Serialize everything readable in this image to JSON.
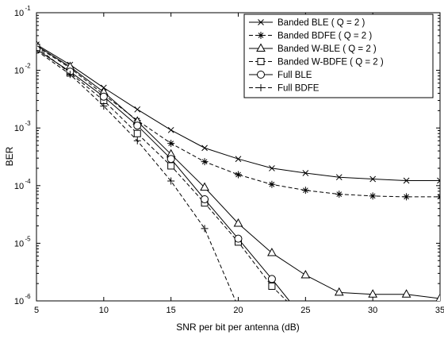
{
  "chart_data": {
    "type": "line",
    "title": "",
    "xlabel": "SNR per bit per antenna  (dB)",
    "ylabel": "BER",
    "xlim": [
      5,
      35
    ],
    "ylim": [
      1e-06,
      0.1
    ],
    "yscale": "log",
    "grid": false,
    "legend_position": "top-right",
    "x_ticks": [
      "5",
      "10",
      "15",
      "20",
      "25",
      "30",
      "35"
    ],
    "y_ticks": [
      {
        "base": "10",
        "exp": "-6"
      },
      {
        "base": "10",
        "exp": "-5"
      },
      {
        "base": "10",
        "exp": "-4"
      },
      {
        "base": "10",
        "exp": "-3"
      },
      {
        "base": "10",
        "exp": "-2"
      },
      {
        "base": "10",
        "exp": "-1"
      }
    ],
    "series": [
      {
        "name": "Banded BLE  ( Q = 2 )",
        "marker": "x",
        "dash": "solid",
        "x": [
          5,
          7.5,
          10,
          12.5,
          15,
          17.5,
          20,
          22.5,
          25,
          27.5,
          30,
          32.5,
          35
        ],
        "y": [
          0.028,
          0.0125,
          0.005,
          0.0021,
          0.00092,
          0.00045,
          0.00029,
          0.0002,
          0.000165,
          0.00014,
          0.00013,
          0.000122,
          0.000122
        ]
      },
      {
        "name": "Banded BDFE  ( Q = 2 )",
        "marker": "star",
        "dash": "dashed",
        "x": [
          5,
          7.5,
          10,
          12.5,
          15,
          17.5,
          20,
          22.5,
          25,
          27.5,
          30,
          32.5,
          35
        ],
        "y": [
          0.026,
          0.011,
          0.0038,
          0.00135,
          0.00054,
          0.00026,
          0.000155,
          0.000105,
          8.3e-05,
          7.1e-05,
          6.6e-05,
          6.4e-05,
          6.4e-05
        ]
      },
      {
        "name": "Banded W-BLE  ( Q = 2 )",
        "marker": "triangle",
        "dash": "solid",
        "x": [
          5,
          7.5,
          10,
          12.5,
          15,
          17.5,
          20,
          22.5,
          25,
          27.5,
          30,
          32.5,
          35
        ],
        "y": [
          0.027,
          0.0115,
          0.0042,
          0.0013,
          0.00035,
          9.3e-05,
          2.2e-05,
          6.8e-06,
          2.8e-06,
          1.4e-06,
          1.3e-06,
          1.3e-06,
          1.1e-06
        ]
      },
      {
        "name": "Banded W-BDFE  ( Q = 2 )",
        "marker": "square",
        "dash": "dashed",
        "x": [
          5,
          7.5,
          10,
          12.5,
          15,
          17.5,
          20,
          22.5,
          23.6
        ],
        "y": [
          0.025,
          0.009,
          0.003,
          0.0008,
          0.00022,
          5e-05,
          1.05e-05,
          1.8e-06,
          1e-06
        ]
      },
      {
        "name": "Full BLE",
        "marker": "circle",
        "dash": "solid",
        "x": [
          5,
          7.5,
          10,
          12.5,
          15,
          17.5,
          20,
          22.5,
          23.8
        ],
        "y": [
          0.023,
          0.0095,
          0.0035,
          0.0011,
          0.00029,
          5.8e-05,
          1.2e-05,
          2.4e-06,
          1e-06
        ]
      },
      {
        "name": "Full BDFE",
        "marker": "plus",
        "dash": "dashed",
        "x": [
          5,
          7.5,
          10,
          12.5,
          15,
          17.5,
          19.8
        ],
        "y": [
          0.022,
          0.0085,
          0.0024,
          0.0006,
          0.00012,
          1.8e-05,
          1e-06
        ]
      }
    ]
  }
}
